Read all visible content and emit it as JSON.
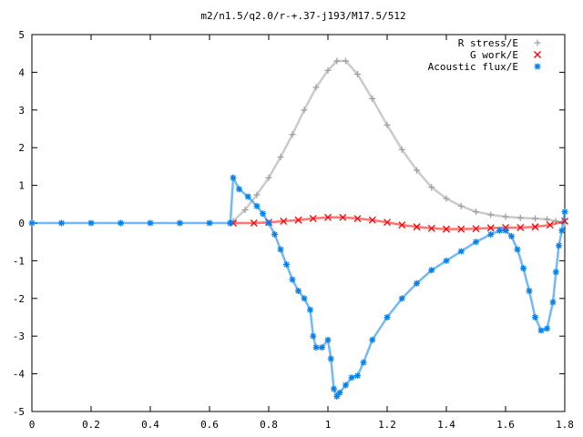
{
  "chart_data": {
    "type": "scatter",
    "title": "m2/n1.5/q2.0/r-+.37-j193/M17.5/512",
    "xlabel": "",
    "ylabel": "",
    "xlim": [
      0,
      1.8
    ],
    "ylim": [
      -5,
      5
    ],
    "x_ticks": [
      "0",
      "0.2",
      "0.4",
      "0.6",
      "0.8",
      "1",
      "1.2",
      "1.4",
      "1.6",
      "1.8"
    ],
    "y_ticks": [
      "5",
      "4",
      "3",
      "2",
      "1",
      "0",
      "-1",
      "-2",
      "-3",
      "-4",
      "-5"
    ],
    "grid": false,
    "legend_position": "top-right",
    "series": [
      {
        "name": "R stress/E",
        "marker": "plus",
        "color": "#a0a0a0",
        "points": [
          [
            0.68,
            0.05
          ],
          [
            0.72,
            0.35
          ],
          [
            0.76,
            0.75
          ],
          [
            0.8,
            1.2
          ],
          [
            0.84,
            1.75
          ],
          [
            0.88,
            2.35
          ],
          [
            0.92,
            3.0
          ],
          [
            0.96,
            3.6
          ],
          [
            1.0,
            4.05
          ],
          [
            1.03,
            4.3
          ],
          [
            1.06,
            4.3
          ],
          [
            1.1,
            3.95
          ],
          [
            1.15,
            3.3
          ],
          [
            1.2,
            2.6
          ],
          [
            1.25,
            1.95
          ],
          [
            1.3,
            1.4
          ],
          [
            1.35,
            0.95
          ],
          [
            1.4,
            0.65
          ],
          [
            1.45,
            0.45
          ],
          [
            1.5,
            0.3
          ],
          [
            1.55,
            0.22
          ],
          [
            1.6,
            0.17
          ],
          [
            1.65,
            0.14
          ],
          [
            1.7,
            0.12
          ],
          [
            1.74,
            0.1
          ],
          [
            1.77,
            0.05
          ],
          [
            1.8,
            0.0
          ]
        ]
      },
      {
        "name": "G work/E",
        "marker": "cross",
        "color": "#ff0000",
        "points": [
          [
            0.68,
            0.0
          ],
          [
            0.75,
            0.0
          ],
          [
            0.8,
            0.02
          ],
          [
            0.85,
            0.05
          ],
          [
            0.9,
            0.08
          ],
          [
            0.95,
            0.12
          ],
          [
            1.0,
            0.15
          ],
          [
            1.05,
            0.15
          ],
          [
            1.1,
            0.12
          ],
          [
            1.15,
            0.08
          ],
          [
            1.2,
            0.02
          ],
          [
            1.25,
            -0.05
          ],
          [
            1.3,
            -0.1
          ],
          [
            1.35,
            -0.14
          ],
          [
            1.4,
            -0.16
          ],
          [
            1.45,
            -0.16
          ],
          [
            1.5,
            -0.15
          ],
          [
            1.55,
            -0.13
          ],
          [
            1.6,
            -0.12
          ],
          [
            1.65,
            -0.12
          ],
          [
            1.7,
            -0.1
          ],
          [
            1.75,
            -0.05
          ],
          [
            1.8,
            0.05
          ]
        ]
      },
      {
        "name": "Acoustic flux/E",
        "marker": "star",
        "color": "#0080f0",
        "points": [
          [
            0.0,
            0.0
          ],
          [
            0.1,
            0.0
          ],
          [
            0.2,
            0.0
          ],
          [
            0.3,
            0.0
          ],
          [
            0.4,
            0.0
          ],
          [
            0.5,
            0.0
          ],
          [
            0.6,
            0.0
          ],
          [
            0.67,
            0.0
          ],
          [
            0.68,
            1.2
          ],
          [
            0.7,
            0.9
          ],
          [
            0.73,
            0.7
          ],
          [
            0.76,
            0.45
          ],
          [
            0.78,
            0.25
          ],
          [
            0.8,
            0.0
          ],
          [
            0.82,
            -0.3
          ],
          [
            0.84,
            -0.7
          ],
          [
            0.86,
            -1.1
          ],
          [
            0.88,
            -1.5
          ],
          [
            0.9,
            -1.8
          ],
          [
            0.92,
            -2.0
          ],
          [
            0.94,
            -2.3
          ],
          [
            0.95,
            -3.0
          ],
          [
            0.96,
            -3.3
          ],
          [
            0.98,
            -3.3
          ],
          [
            1.0,
            -3.1
          ],
          [
            1.01,
            -3.6
          ],
          [
            1.02,
            -4.4
          ],
          [
            1.03,
            -4.6
          ],
          [
            1.04,
            -4.5
          ],
          [
            1.06,
            -4.3
          ],
          [
            1.08,
            -4.1
          ],
          [
            1.1,
            -4.05
          ],
          [
            1.12,
            -3.7
          ],
          [
            1.15,
            -3.1
          ],
          [
            1.2,
            -2.5
          ],
          [
            1.25,
            -2.0
          ],
          [
            1.3,
            -1.6
          ],
          [
            1.35,
            -1.25
          ],
          [
            1.4,
            -1.0
          ],
          [
            1.45,
            -0.75
          ],
          [
            1.5,
            -0.5
          ],
          [
            1.55,
            -0.3
          ],
          [
            1.58,
            -0.2
          ],
          [
            1.6,
            -0.2
          ],
          [
            1.62,
            -0.35
          ],
          [
            1.64,
            -0.7
          ],
          [
            1.66,
            -1.2
          ],
          [
            1.68,
            -1.8
          ],
          [
            1.7,
            -2.5
          ],
          [
            1.72,
            -2.85
          ],
          [
            1.74,
            -2.8
          ],
          [
            1.76,
            -2.1
          ],
          [
            1.77,
            -1.3
          ],
          [
            1.78,
            -0.6
          ],
          [
            1.79,
            -0.2
          ],
          [
            1.8,
            0.3
          ]
        ]
      }
    ]
  }
}
